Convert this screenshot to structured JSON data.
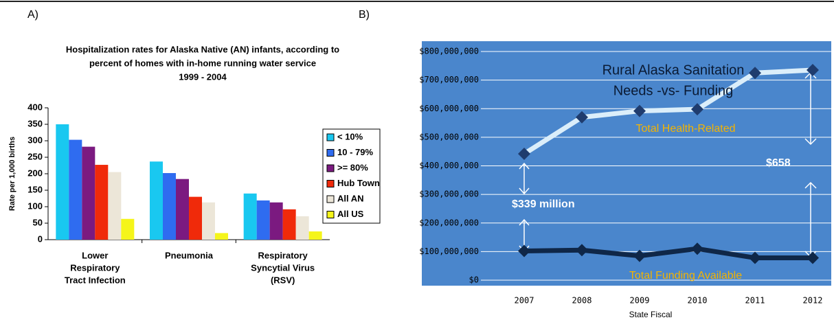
{
  "panel_labels": [
    "A)",
    "B)"
  ],
  "chart_data": [
    {
      "type": "bar",
      "title": [
        "Hospitalization rates for Alaska Native (AN) infants, according to",
        "percent of homes with in-home running water service",
        "1999 - 2004"
      ],
      "y_label": "Rate per 1,000 births",
      "categories": [
        [
          "Lower",
          "Respiratory",
          "Tract Infection"
        ],
        [
          "Pneumonia"
        ],
        [
          "Respiratory",
          "Syncytial Virus",
          "(RSV)"
        ]
      ],
      "series": [
        {
          "name": "< 10%",
          "color": "#19c8f0",
          "values": [
            350,
            237,
            140
          ]
        },
        {
          "name": "10 - 79%",
          "color": "#2f6cf0",
          "values": [
            303,
            202,
            119
          ]
        },
        {
          "name": ">= 80%",
          "color": "#7b1a80",
          "values": [
            282,
            184,
            113
          ]
        },
        {
          "name": "Hub Town",
          "color": "#f02a0a",
          "values": [
            227,
            130,
            92
          ]
        },
        {
          "name": "All AN",
          "color": "#ece6d8",
          "values": [
            205,
            113,
            71
          ]
        },
        {
          "name": "All US",
          "color": "#f5f51a",
          "values": [
            63,
            20,
            25
          ]
        }
      ],
      "ylim": [
        0,
        400
      ],
      "yticks": [
        0,
        50,
        100,
        150,
        200,
        250,
        300,
        350,
        400
      ],
      "legend": "right"
    },
    {
      "type": "line",
      "title": [
        "Rural Alaska Sanitation",
        "Needs -vs- Funding"
      ],
      "x_label": "State Fiscal",
      "categories": [
        "2007",
        "2008",
        "2009",
        "2010",
        "2011",
        "2012"
      ],
      "series": [
        {
          "name": "Total Health-Related",
          "color": "#dbeefa",
          "label_color": "#f5b400",
          "values": [
            442000000,
            570000000,
            592000000,
            598000000,
            725000000,
            735000000
          ]
        },
        {
          "name": "Total Funding Available",
          "color": "#0f2748",
          "label_color": "#f5b400",
          "values": [
            102000000,
            105000000,
            85000000,
            110000000,
            78000000,
            78000000
          ]
        }
      ],
      "annotations": [
        "$339 million",
        "$658"
      ],
      "ylim": [
        0,
        800000000
      ],
      "yticks": [
        {
          "value": 0,
          "label": "$0"
        },
        {
          "value": 100000000,
          "label": "$100,000,000"
        },
        {
          "value": 200000000,
          "label": "$200,000,000"
        },
        {
          "value": 300000000,
          "label": "$300,000,000"
        },
        {
          "value": 400000000,
          "label": "$400,000,000"
        },
        {
          "value": 500000000,
          "label": "$500,000,000"
        },
        {
          "value": 600000000,
          "label": "$600,000,000"
        },
        {
          "value": 700000000,
          "label": "$700,000,000"
        },
        {
          "value": 800000000,
          "label": "$800,000,000"
        }
      ],
      "grid": true,
      "background": "#4a86cc"
    }
  ]
}
